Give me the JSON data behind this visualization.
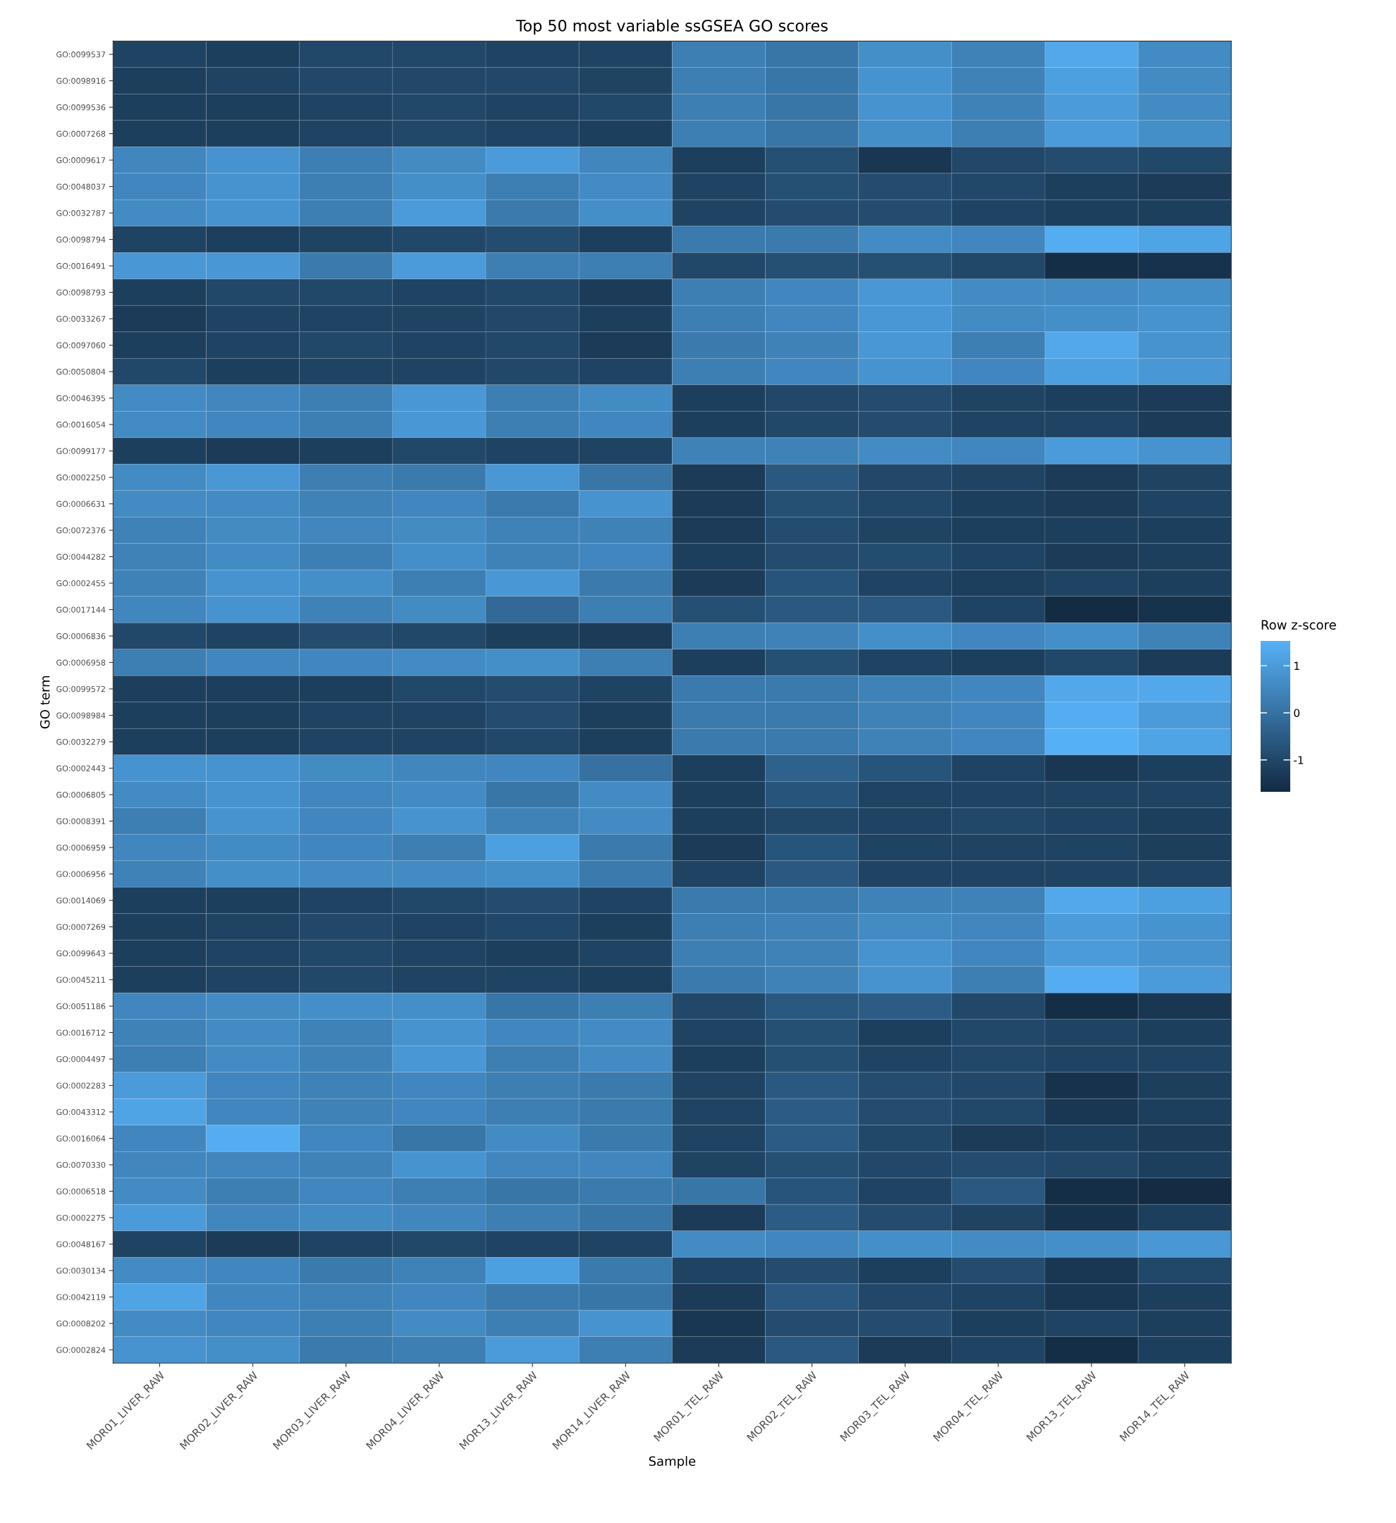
{
  "chart_data": {
    "type": "heatmap",
    "title": "Top 50 most variable ssGSEA GO scores",
    "xlabel": "Sample",
    "ylabel": "GO term",
    "clabel": "Row z-score",
    "categories": [
      "MOR01_LIVER_RAW",
      "MOR02_LIVER_RAW",
      "MOR03_LIVER_RAW",
      "MOR04_LIVER_RAW",
      "MOR13_LIVER_RAW",
      "MOR14_LIVER_RAW",
      "MOR01_TEL_RAW",
      "MOR02_TEL_RAW",
      "MOR03_TEL_RAW",
      "MOR04_TEL_RAW",
      "MOR13_TEL_RAW",
      "MOR14_TEL_RAW"
    ],
    "y_categories": [
      "GO:0099537",
      "GO:0098916",
      "GO:0099536",
      "GO:0007268",
      "GO:0009617",
      "GO:0048037",
      "GO:0032787",
      "GO:0098794",
      "GO:0016491",
      "GO:0098793",
      "GO:0033267",
      "GO:0097060",
      "GO:0050804",
      "GO:0046395",
      "GO:0016054",
      "GO:0099177",
      "GO:0002250",
      "GO:0006631",
      "GO:0072376",
      "GO:0044282",
      "GO:0002455",
      "GO:0017144",
      "GO:0006836",
      "GO:0006958",
      "GO:0099572",
      "GO:0098984",
      "GO:0032279",
      "GO:0002443",
      "GO:0006805",
      "GO:0008391",
      "GO:0006959",
      "GO:0006956",
      "GO:0014069",
      "GO:0007269",
      "GO:0099643",
      "GO:0045211",
      "GO:0051186",
      "GO:0016712",
      "GO:0004497",
      "GO:0002283",
      "GO:0043312",
      "GO:0016064",
      "GO:0070330",
      "GO:0006518",
      "GO:0002275",
      "GO:0048167",
      "GO:0030134",
      "GO:0042119",
      "GO:0008202",
      "GO:0002824"
    ],
    "cells": [
      [
        -1.1,
        -1.2,
        -1.0,
        -1.0,
        -1.1,
        -1.1,
        0.3,
        0.1,
        0.7,
        0.4,
        1.3,
        0.6
      ],
      [
        -1.2,
        -1.1,
        -1.0,
        -1.0,
        -1.0,
        -1.1,
        0.3,
        0.1,
        0.8,
        0.4,
        1.1,
        0.6
      ],
      [
        -1.2,
        -1.2,
        -1.1,
        -1.0,
        -1.1,
        -1.0,
        0.3,
        0.1,
        0.8,
        0.4,
        1.0,
        0.6
      ],
      [
        -1.2,
        -1.2,
        -1.1,
        -1.0,
        -1.1,
        -1.2,
        0.3,
        0.1,
        0.7,
        0.3,
        1.0,
        0.7
      ],
      [
        0.5,
        0.8,
        0.3,
        0.6,
        1.0,
        0.5,
        -1.2,
        -0.8,
        -1.4,
        -1.0,
        -0.9,
        -1.0
      ],
      [
        0.5,
        0.8,
        0.3,
        0.7,
        0.3,
        0.6,
        -1.1,
        -0.8,
        -0.9,
        -1.0,
        -1.2,
        -1.3
      ],
      [
        0.6,
        0.8,
        0.3,
        1.0,
        0.2,
        0.7,
        -1.1,
        -0.9,
        -0.9,
        -1.1,
        -1.2,
        -1.2
      ],
      [
        -1.1,
        -1.2,
        -1.1,
        -1.0,
        -0.9,
        -1.2,
        0.2,
        0.2,
        0.6,
        0.5,
        1.4,
        1.2
      ],
      [
        0.9,
        0.9,
        0.2,
        1.0,
        0.3,
        0.3,
        -1.0,
        -0.8,
        -0.8,
        -1.0,
        -1.6,
        -1.5
      ],
      [
        -1.2,
        -1.0,
        -1.0,
        -1.1,
        -1.0,
        -1.3,
        0.3,
        0.5,
        0.9,
        0.6,
        0.6,
        0.7
      ],
      [
        -1.3,
        -1.1,
        -1.1,
        -1.1,
        -1.0,
        -1.2,
        0.3,
        0.5,
        0.9,
        0.6,
        0.7,
        0.8
      ],
      [
        -1.2,
        -1.1,
        -1.0,
        -1.1,
        -1.0,
        -1.3,
        0.2,
        0.4,
        0.9,
        0.3,
        1.3,
        0.8
      ],
      [
        -1.0,
        -1.2,
        -1.1,
        -1.1,
        -1.0,
        -1.1,
        0.3,
        0.5,
        0.8,
        0.5,
        1.1,
        0.9
      ],
      [
        0.6,
        0.5,
        0.3,
        0.9,
        0.3,
        0.6,
        -1.2,
        -1.0,
        -0.9,
        -1.1,
        -1.2,
        -1.3
      ],
      [
        0.6,
        0.5,
        0.3,
        0.9,
        0.3,
        0.5,
        -1.2,
        -1.0,
        -0.9,
        -1.1,
        -1.1,
        -1.3
      ],
      [
        -1.2,
        -1.3,
        -1.2,
        -1.0,
        -1.1,
        -1.1,
        0.4,
        0.4,
        0.6,
        0.5,
        1.0,
        0.8
      ],
      [
        0.6,
        0.9,
        0.3,
        0.2,
        0.9,
        0.1,
        -1.3,
        -0.6,
        -1.0,
        -1.1,
        -1.3,
        -1.1
      ],
      [
        0.6,
        0.6,
        0.4,
        0.5,
        0.2,
        0.8,
        -1.3,
        -0.8,
        -1.0,
        -1.2,
        -1.3,
        -1.1
      ],
      [
        0.4,
        0.6,
        0.5,
        0.6,
        0.4,
        0.4,
        -1.3,
        -0.9,
        -1.1,
        -1.2,
        -1.2,
        -1.2
      ],
      [
        0.4,
        0.6,
        0.3,
        0.7,
        0.4,
        0.5,
        -1.2,
        -0.9,
        -0.9,
        -1.1,
        -1.3,
        -1.2
      ],
      [
        0.4,
        0.8,
        0.7,
        0.3,
        0.9,
        0.2,
        -1.3,
        -0.7,
        -1.1,
        -1.2,
        -1.1,
        -1.2
      ],
      [
        0.5,
        0.8,
        0.4,
        0.6,
        -0.2,
        0.3,
        -0.8,
        -0.6,
        -0.6,
        -1.1,
        -1.7,
        -1.5
      ],
      [
        -1.0,
        -1.1,
        -0.9,
        -1.0,
        -1.2,
        -1.3,
        0.3,
        0.4,
        0.7,
        0.5,
        0.7,
        0.4
      ],
      [
        0.3,
        0.5,
        0.5,
        0.6,
        0.7,
        0.3,
        -1.2,
        -0.8,
        -1.1,
        -1.2,
        -1.0,
        -1.3
      ],
      [
        -1.2,
        -1.2,
        -1.2,
        -1.0,
        -0.9,
        -1.1,
        0.2,
        0.2,
        0.4,
        0.5,
        1.3,
        1.3
      ],
      [
        -1.2,
        -1.2,
        -1.1,
        -1.1,
        -0.9,
        -1.2,
        0.2,
        0.2,
        0.4,
        0.5,
        1.4,
        1.0
      ],
      [
        -1.2,
        -1.2,
        -1.1,
        -1.1,
        -1.0,
        -1.2,
        0.2,
        0.2,
        0.4,
        0.5,
        1.5,
        1.2
      ],
      [
        0.8,
        0.8,
        0.6,
        0.5,
        0.5,
        0.0,
        -1.2,
        -0.4,
        -0.7,
        -1.1,
        -1.4,
        -1.2
      ],
      [
        0.6,
        0.8,
        0.5,
        0.6,
        0.1,
        0.6,
        -1.2,
        -0.7,
        -1.1,
        -1.1,
        -1.1,
        -1.1
      ],
      [
        0.3,
        0.8,
        0.5,
        0.8,
        0.4,
        0.6,
        -1.2,
        -1.0,
        -1.1,
        -1.0,
        -1.1,
        -1.2
      ],
      [
        0.5,
        0.6,
        0.5,
        0.3,
        1.1,
        0.2,
        -1.3,
        -0.7,
        -1.1,
        -1.1,
        -1.1,
        -1.2
      ],
      [
        0.4,
        0.7,
        0.6,
        0.6,
        0.7,
        0.2,
        -1.1,
        -0.6,
        -1.1,
        -1.1,
        -1.1,
        -1.1
      ],
      [
        -1.2,
        -1.2,
        -1.1,
        -1.0,
        -0.9,
        -1.1,
        0.2,
        0.2,
        0.4,
        0.4,
        1.3,
        1.1
      ],
      [
        -1.2,
        -1.1,
        -1.0,
        -1.1,
        -1.0,
        -1.2,
        0.3,
        0.4,
        0.6,
        0.5,
        1.0,
        0.8
      ],
      [
        -1.2,
        -1.1,
        -1.0,
        -1.1,
        -1.2,
        -1.1,
        0.3,
        0.4,
        0.8,
        0.5,
        1.0,
        0.8
      ],
      [
        -1.2,
        -1.1,
        -1.0,
        -1.1,
        -1.1,
        -1.2,
        0.2,
        0.4,
        0.8,
        0.3,
        1.4,
        1.0
      ],
      [
        0.5,
        0.6,
        0.7,
        0.7,
        0.1,
        0.3,
        -1.0,
        -0.6,
        -0.5,
        -1.0,
        -1.6,
        -1.4
      ],
      [
        0.4,
        0.6,
        0.4,
        0.8,
        0.5,
        0.6,
        -1.1,
        -0.8,
        -1.2,
        -1.0,
        -1.1,
        -1.2
      ],
      [
        0.3,
        0.6,
        0.4,
        0.9,
        0.3,
        0.6,
        -1.2,
        -0.8,
        -1.1,
        -1.0,
        -1.1,
        -1.1
      ],
      [
        1.0,
        0.5,
        0.4,
        0.5,
        0.3,
        0.2,
        -1.1,
        -0.6,
        -0.9,
        -1.0,
        -1.5,
        -1.2
      ],
      [
        1.2,
        0.5,
        0.4,
        0.5,
        0.3,
        0.2,
        -1.1,
        -0.5,
        -0.9,
        -1.0,
        -1.4,
        -1.2
      ],
      [
        0.5,
        1.4,
        0.5,
        0.1,
        0.6,
        0.2,
        -1.1,
        -0.5,
        -1.0,
        -1.3,
        -1.2,
        -1.3
      ],
      [
        0.5,
        0.5,
        0.4,
        0.8,
        0.5,
        0.5,
        -1.1,
        -0.8,
        -1.0,
        -0.9,
        -1.0,
        -1.2
      ],
      [
        0.6,
        0.3,
        0.5,
        0.3,
        0.1,
        0.2,
        0.1,
        -0.7,
        -1.1,
        -0.6,
        -1.6,
        -1.7
      ],
      [
        1.0,
        0.5,
        0.6,
        0.5,
        0.3,
        0.1,
        -1.3,
        -0.5,
        -0.9,
        -1.1,
        -1.5,
        -1.2
      ],
      [
        -1.1,
        -1.3,
        -1.1,
        -1.0,
        -1.1,
        -1.1,
        0.6,
        0.5,
        0.7,
        0.6,
        0.7,
        0.9
      ],
      [
        0.6,
        0.5,
        0.2,
        0.4,
        1.1,
        0.2,
        -1.1,
        -0.9,
        -1.2,
        -0.9,
        -1.4,
        -1.0
      ],
      [
        1.2,
        0.5,
        0.4,
        0.5,
        0.2,
        0.1,
        -1.3,
        -0.6,
        -1.0,
        -1.1,
        -1.4,
        -1.2
      ],
      [
        0.6,
        0.5,
        0.3,
        0.6,
        0.3,
        0.8,
        -1.4,
        -0.9,
        -0.9,
        -1.2,
        -1.1,
        -1.2
      ],
      [
        0.8,
        0.7,
        0.2,
        0.3,
        1.0,
        0.3,
        -1.3,
        -0.6,
        -1.3,
        -1.1,
        -1.6,
        -1.2
      ]
    ],
    "clim": [
      -1.68,
      1.52
    ],
    "cticks": [
      -1,
      0,
      1
    ]
  }
}
